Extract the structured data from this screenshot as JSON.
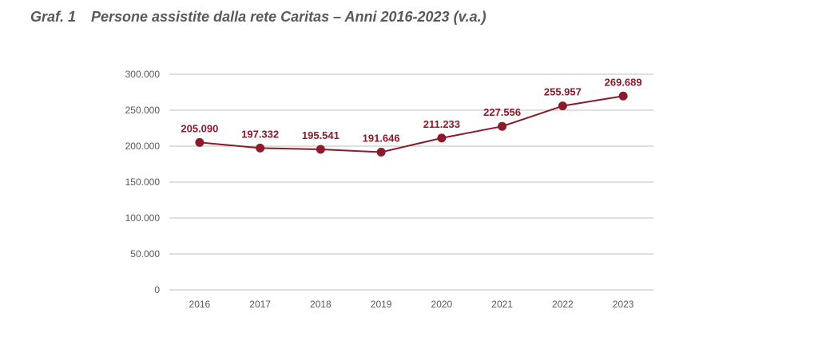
{
  "figure": {
    "number": "Graf. 1",
    "title": "Persone assistite dalla rete Caritas – Anni 2016-2023 (v.a.)"
  },
  "colors": {
    "series": "#8b1a2b",
    "grid": "#bfbfbf",
    "axis_text": "#595959"
  },
  "chart_data": {
    "type": "line",
    "title": "Persone assistite dalla rete Caritas – Anni 2016-2023 (v.a.)",
    "x": [
      "2016",
      "2017",
      "2018",
      "2019",
      "2020",
      "2021",
      "2022",
      "2023"
    ],
    "series": [
      {
        "values": [
          205090,
          197332,
          195541,
          191646,
          211233,
          227556,
          255957,
          269689
        ],
        "labels": [
          "205.090",
          "197.332",
          "195.541",
          "191.646",
          "211.233",
          "227.556",
          "255.957",
          "269.689"
        ]
      }
    ],
    "ylim": [
      0,
      300000
    ],
    "yticks": [
      0,
      50000,
      100000,
      150000,
      200000,
      250000,
      300000
    ],
    "ytick_labels": [
      "0",
      "50.000",
      "100.000",
      "150.000",
      "200.000",
      "250.000",
      "300.000"
    ],
    "grid": true,
    "legend": "none"
  }
}
